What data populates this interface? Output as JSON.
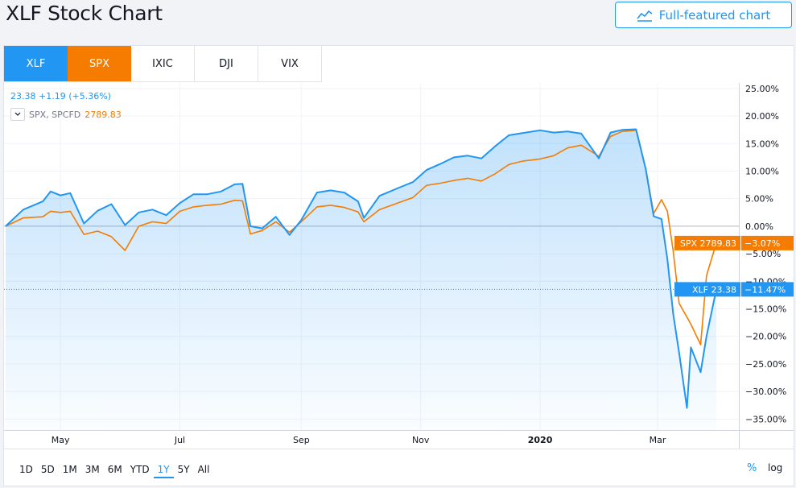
{
  "page": {
    "title": "XLF Stock Chart",
    "full_chart_label": "Full-featured chart"
  },
  "tabs": [
    {
      "label": "XLF",
      "state": "active-blue"
    },
    {
      "label": "SPX",
      "state": "active-orange"
    },
    {
      "label": "IXIC",
      "state": ""
    },
    {
      "label": "DJI",
      "state": ""
    },
    {
      "label": "VIX",
      "state": ""
    }
  ],
  "legend": {
    "main_line": "23.38  +1.19 (+5.36%)",
    "compare_label": "SPX, SPCFD",
    "compare_value": "2789.83"
  },
  "time_ranges": [
    {
      "label": "1D",
      "active": false
    },
    {
      "label": "5D",
      "active": false
    },
    {
      "label": "1M",
      "active": false
    },
    {
      "label": "3M",
      "active": false
    },
    {
      "label": "6M",
      "active": false
    },
    {
      "label": "YTD",
      "active": false
    },
    {
      "label": "1Y",
      "active": true
    },
    {
      "label": "5Y",
      "active": false
    },
    {
      "label": "All",
      "active": false
    }
  ],
  "scale_buttons": {
    "percent": "%",
    "log": "log"
  },
  "colors": {
    "xlf": "#2196f3",
    "spx": "#f57c00",
    "accent": "#2196f3"
  },
  "chart_data": {
    "type": "line",
    "y_unit": "percent",
    "ylim": [
      -37,
      26
    ],
    "y_ticks": [
      "25.00%",
      "20.00%",
      "15.00%",
      "10.00%",
      "5.00%",
      "0.00%",
      "−5.00%",
      "−10.00%",
      "−15.00%",
      "−20.00%",
      "−25.00%",
      "−30.00%",
      "−35.00%"
    ],
    "y_tick_values": [
      25,
      20,
      15,
      10,
      5,
      0,
      -5,
      -10,
      -15,
      -20,
      -25,
      -30,
      -35
    ],
    "x_domain": [
      "2019-04-03",
      "2020-03-31"
    ],
    "x_ticks": [
      {
        "label": "May",
        "date": "2019-05-01"
      },
      {
        "label": "Jul",
        "date": "2019-07-01"
      },
      {
        "label": "Sep",
        "date": "2019-09-01"
      },
      {
        "label": "Nov",
        "date": "2019-11-01"
      },
      {
        "label": "2020",
        "date": "2020-01-01"
      },
      {
        "label": "Mar",
        "date": "2020-03-01"
      }
    ],
    "grid": true,
    "series": [
      {
        "name": "XLF",
        "last_label": "XLF 23.38",
        "last_change": "−11.47%",
        "last_value": -11.47,
        "points": [
          [
            "2019-04-03",
            0
          ],
          [
            "2019-04-12",
            3
          ],
          [
            "2019-04-22",
            4.5
          ],
          [
            "2019-04-26",
            6.3
          ],
          [
            "2019-05-01",
            5.6
          ],
          [
            "2019-05-06",
            6
          ],
          [
            "2019-05-13",
            0.5
          ],
          [
            "2019-05-20",
            2.8
          ],
          [
            "2019-05-27",
            4
          ],
          [
            "2019-06-03",
            0.2
          ],
          [
            "2019-06-10",
            2.5
          ],
          [
            "2019-06-17",
            3
          ],
          [
            "2019-06-24",
            2
          ],
          [
            "2019-07-01",
            4.2
          ],
          [
            "2019-07-08",
            5.8
          ],
          [
            "2019-07-15",
            5.8
          ],
          [
            "2019-07-22",
            6.3
          ],
          [
            "2019-07-29",
            7.6
          ],
          [
            "2019-08-02",
            7.7
          ],
          [
            "2019-08-06",
            0
          ],
          [
            "2019-08-12",
            -0.4
          ],
          [
            "2019-08-19",
            1.7
          ],
          [
            "2019-08-26",
            -1.6
          ],
          [
            "2019-09-01",
            1.1
          ],
          [
            "2019-09-09",
            6.1
          ],
          [
            "2019-09-16",
            6.5
          ],
          [
            "2019-09-23",
            6.1
          ],
          [
            "2019-09-30",
            4.5
          ],
          [
            "2019-10-03",
            1.5
          ],
          [
            "2019-10-11",
            5.5
          ],
          [
            "2019-10-21",
            7
          ],
          [
            "2019-10-28",
            8
          ],
          [
            "2019-11-04",
            10.2
          ],
          [
            "2019-11-11",
            11.3
          ],
          [
            "2019-11-18",
            12.5
          ],
          [
            "2019-11-25",
            12.8
          ],
          [
            "2019-12-02",
            12.3
          ],
          [
            "2019-12-09",
            14.5
          ],
          [
            "2019-12-16",
            16.5
          ],
          [
            "2019-12-23",
            16.9
          ],
          [
            "2020-01-01",
            17.4
          ],
          [
            "2020-01-08",
            17
          ],
          [
            "2020-01-15",
            17.2
          ],
          [
            "2020-01-22",
            16.8
          ],
          [
            "2020-01-31",
            12.3
          ],
          [
            "2020-02-06",
            17
          ],
          [
            "2020-02-12",
            17.5
          ],
          [
            "2020-02-19",
            17.6
          ],
          [
            "2020-02-24",
            10.3
          ],
          [
            "2020-02-28",
            1.8
          ],
          [
            "2020-03-03",
            1.3
          ],
          [
            "2020-03-06",
            -6
          ],
          [
            "2020-03-09",
            -16
          ],
          [
            "2020-03-12",
            -23
          ],
          [
            "2020-03-16",
            -33
          ],
          [
            "2020-03-18",
            -22
          ],
          [
            "2020-03-23",
            -26.5
          ],
          [
            "2020-03-26",
            -20
          ],
          [
            "2020-03-31",
            -11.47
          ]
        ]
      },
      {
        "name": "SPX",
        "last_label": "SPX 2789.83",
        "last_change": "−3.07%",
        "last_value": -3.07,
        "points": [
          [
            "2019-04-03",
            0
          ],
          [
            "2019-04-12",
            1.5
          ],
          [
            "2019-04-22",
            1.7
          ],
          [
            "2019-04-26",
            2.7
          ],
          [
            "2019-05-01",
            2.5
          ],
          [
            "2019-05-06",
            2.7
          ],
          [
            "2019-05-13",
            -1.5
          ],
          [
            "2019-05-20",
            -0.9
          ],
          [
            "2019-05-27",
            -1.9
          ],
          [
            "2019-06-03",
            -4.4
          ],
          [
            "2019-06-10",
            0
          ],
          [
            "2019-06-17",
            0.8
          ],
          [
            "2019-06-24",
            0.5
          ],
          [
            "2019-07-01",
            2.7
          ],
          [
            "2019-07-08",
            3.5
          ],
          [
            "2019-07-15",
            3.8
          ],
          [
            "2019-07-22",
            4
          ],
          [
            "2019-07-29",
            4.7
          ],
          [
            "2019-08-02",
            4.6
          ],
          [
            "2019-08-06",
            -1.4
          ],
          [
            "2019-08-12",
            -0.8
          ],
          [
            "2019-08-19",
            0.8
          ],
          [
            "2019-08-26",
            -1.1
          ],
          [
            "2019-09-01",
            0.8
          ],
          [
            "2019-09-09",
            3.5
          ],
          [
            "2019-09-16",
            3.8
          ],
          [
            "2019-09-23",
            3.4
          ],
          [
            "2019-09-30",
            2.6
          ],
          [
            "2019-10-03",
            0.8
          ],
          [
            "2019-10-11",
            3
          ],
          [
            "2019-10-21",
            4.3
          ],
          [
            "2019-10-28",
            5.2
          ],
          [
            "2019-11-04",
            7.4
          ],
          [
            "2019-11-11",
            7.8
          ],
          [
            "2019-11-18",
            8.3
          ],
          [
            "2019-11-25",
            8.7
          ],
          [
            "2019-12-02",
            8.2
          ],
          [
            "2019-12-09",
            9.5
          ],
          [
            "2019-12-16",
            11.2
          ],
          [
            "2019-12-23",
            11.8
          ],
          [
            "2020-01-01",
            12.2
          ],
          [
            "2020-01-08",
            12.8
          ],
          [
            "2020-01-15",
            14.2
          ],
          [
            "2020-01-22",
            14.7
          ],
          [
            "2020-01-31",
            12.7
          ],
          [
            "2020-02-06",
            16.3
          ],
          [
            "2020-02-12",
            17.2
          ],
          [
            "2020-02-19",
            17.4
          ],
          [
            "2020-02-24",
            10.4
          ],
          [
            "2020-02-28",
            2.3
          ],
          [
            "2020-03-03",
            4.8
          ],
          [
            "2020-03-06",
            2.7
          ],
          [
            "2020-03-09",
            -4.6
          ],
          [
            "2020-03-12",
            -14
          ],
          [
            "2020-03-16",
            -16.5
          ],
          [
            "2020-03-18",
            -17.8
          ],
          [
            "2020-03-23",
            -21.5
          ],
          [
            "2020-03-26",
            -9
          ],
          [
            "2020-03-31",
            -3.07
          ]
        ]
      }
    ]
  }
}
